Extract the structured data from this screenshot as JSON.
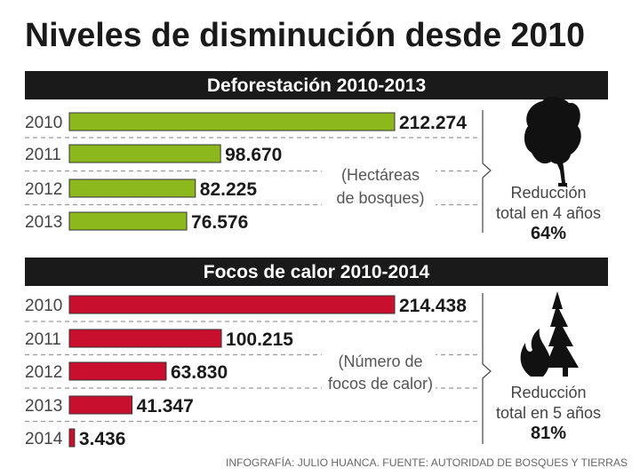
{
  "title": "Niveles de disminución desde 2010",
  "footer": "INFOGRAFÍA: JULIO HUANCA. FUENTE: AUTORIDAD DE BOSQUES Y TIERRAS",
  "colors": {
    "green": "#8cb81e",
    "red": "#c8102e",
    "band": "#1a1a1a"
  },
  "chart_data": [
    {
      "type": "bar",
      "orientation": "horizontal",
      "title": "Deforestación 2010-2013",
      "unit_label": [
        "(Hectáreas",
        "de bosques)"
      ],
      "categories": [
        "2010",
        "2011",
        "2012",
        "2013"
      ],
      "values": [
        212274,
        98670,
        82225,
        76576
      ],
      "value_labels": [
        "212.274",
        "98.670",
        "82.225",
        "76.576"
      ],
      "summary": [
        "Reducción",
        "total en 4 años",
        "64%"
      ],
      "icon": "tree-icon"
    },
    {
      "type": "bar",
      "orientation": "horizontal",
      "title": "Focos de calor 2010-2014",
      "unit_label": [
        "(Número de",
        "focos de calor)"
      ],
      "categories": [
        "2010",
        "2011",
        "2012",
        "2013",
        "2014"
      ],
      "values": [
        214438,
        100215,
        63830,
        41347,
        3436
      ],
      "value_labels": [
        "214.438",
        "100.215",
        "63.830",
        "41.347",
        "3.436"
      ],
      "summary": [
        "Reducción",
        "total en 5 años",
        "81%"
      ],
      "icon": "burning-tree-icon"
    }
  ]
}
